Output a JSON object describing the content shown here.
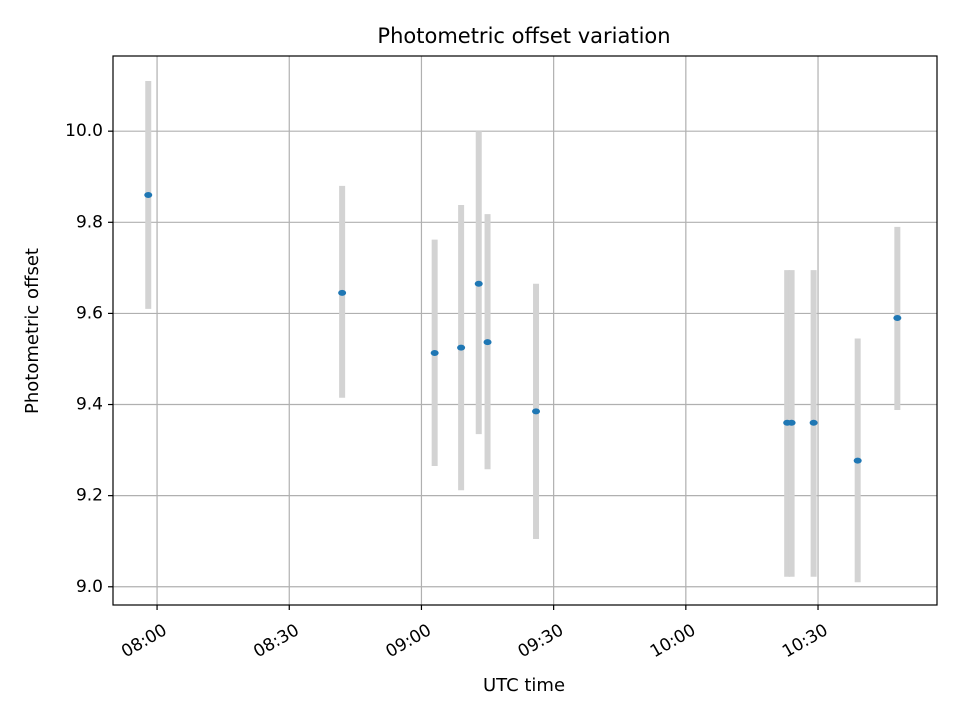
{
  "chart_data": {
    "type": "scatter",
    "title": "Photometric offset variation",
    "xlabel": "UTC time",
    "ylabel": "Photometric offset",
    "grid": true,
    "xlim": [
      "07:50",
      "10:57"
    ],
    "ylim": [
      8.96,
      10.165
    ],
    "x_ticks": [
      "08:00",
      "08:30",
      "09:00",
      "09:30",
      "10:00",
      "10:30"
    ],
    "y_ticks": [
      "9.0",
      "9.2",
      "9.4",
      "9.6",
      "9.8",
      "10.0"
    ],
    "point_color": "#1f77b4",
    "errorbar_color": "#d3d3d3",
    "points": [
      {
        "time": "07:58",
        "value": 9.86,
        "err_low": 9.61,
        "err_high": 10.11
      },
      {
        "time": "08:42",
        "value": 9.645,
        "err_low": 9.415,
        "err_high": 9.88
      },
      {
        "time": "09:03",
        "value": 9.513,
        "err_low": 9.265,
        "err_high": 9.762
      },
      {
        "time": "09:09",
        "value": 9.525,
        "err_low": 9.212,
        "err_high": 9.838
      },
      {
        "time": "09:13",
        "value": 9.665,
        "err_low": 9.335,
        "err_high": 10.0
      },
      {
        "time": "09:15",
        "value": 9.537,
        "err_low": 9.258,
        "err_high": 9.818
      },
      {
        "time": "09:26",
        "value": 9.385,
        "err_low": 9.105,
        "err_high": 9.665
      },
      {
        "time": "10:23",
        "value": 9.36,
        "err_low": 9.022,
        "err_high": 9.695
      },
      {
        "time": "10:24",
        "value": 9.36,
        "err_low": 9.022,
        "err_high": 9.695
      },
      {
        "time": "10:29",
        "value": 9.36,
        "err_low": 9.022,
        "err_high": 9.695
      },
      {
        "time": "10:39",
        "value": 9.277,
        "err_low": 9.01,
        "err_high": 9.545
      },
      {
        "time": "10:48",
        "value": 9.59,
        "err_low": 9.388,
        "err_high": 9.79
      }
    ]
  }
}
